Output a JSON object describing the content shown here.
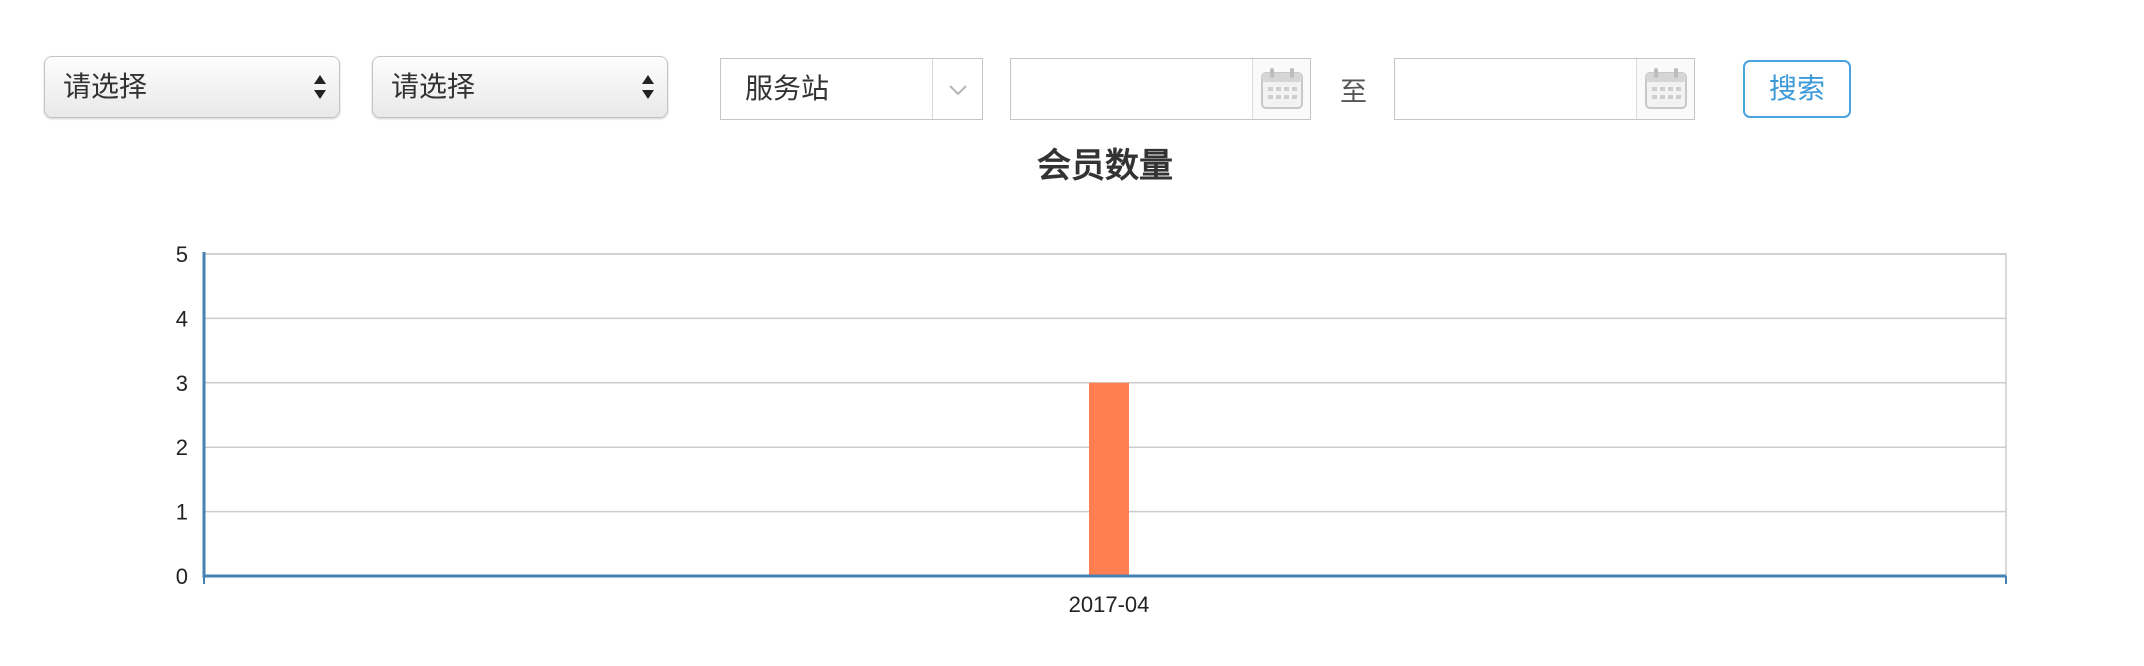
{
  "filters": {
    "select1": "请选择",
    "select2": "请选择",
    "station_combo": "服务站",
    "start_date": "",
    "end_date": "",
    "range_separator": "至",
    "search_label": "搜索"
  },
  "colors": {
    "bar": "#ff7f50",
    "axis": "#4682b4",
    "grid": "#cccccc",
    "button_accent": "#3c9ad9"
  },
  "chart_data": {
    "type": "bar",
    "title": "会员数量",
    "categories": [
      "2017-04"
    ],
    "values": [
      3
    ],
    "ylim": [
      0,
      5
    ],
    "yticks": [
      0,
      1,
      2,
      3,
      4,
      5
    ],
    "xlabel": "",
    "ylabel": "",
    "grid": true,
    "legend": "none"
  }
}
